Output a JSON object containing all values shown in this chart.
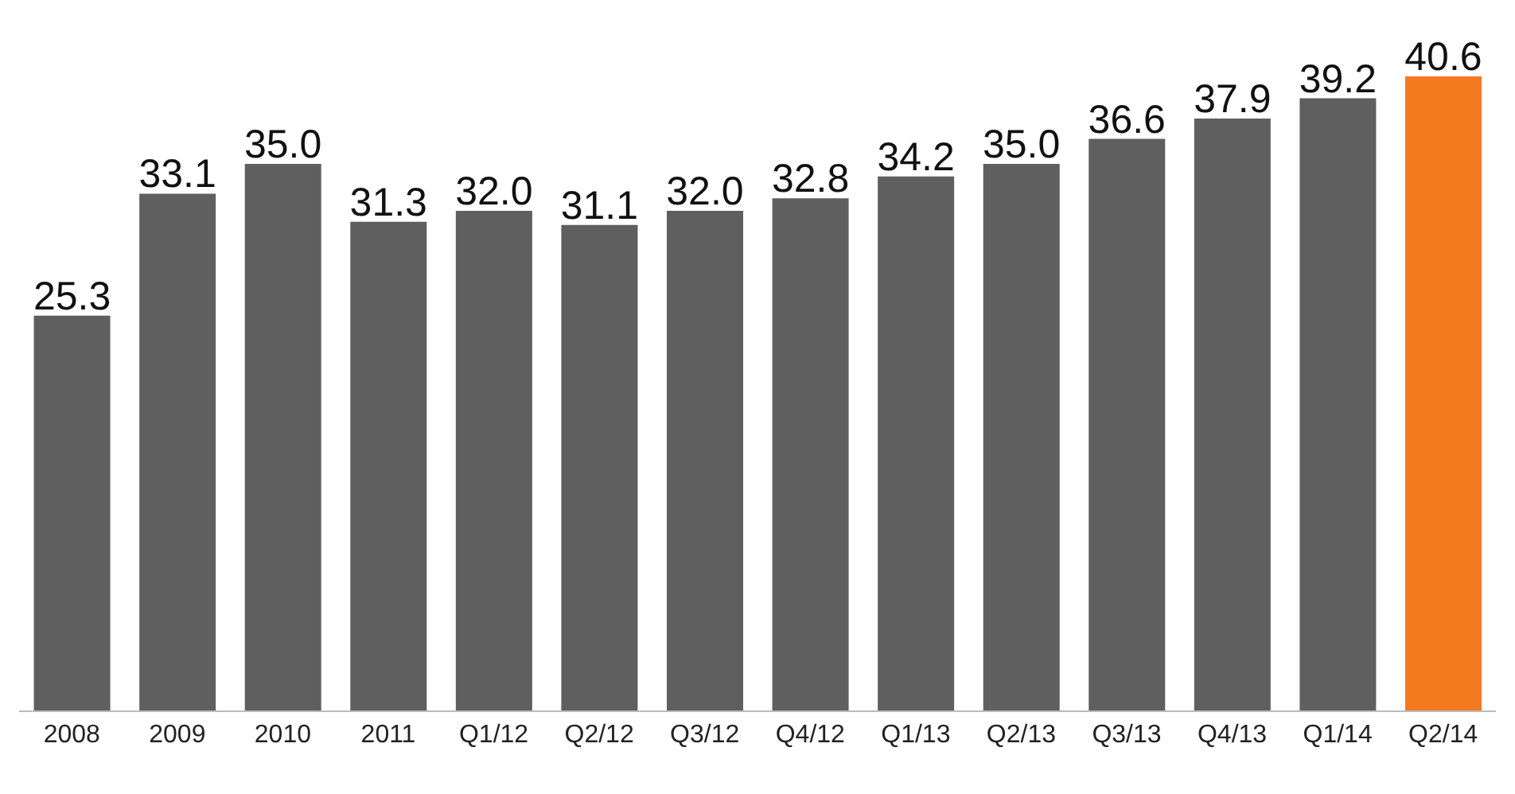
{
  "chart_data": {
    "type": "bar",
    "categories": [
      "2008",
      "2009",
      "2010",
      "2011",
      "Q1/12",
      "Q2/12",
      "Q3/12",
      "Q4/12",
      "Q1/13",
      "Q2/13",
      "Q3/13",
      "Q4/13",
      "Q1/14",
      "Q2/14"
    ],
    "values": [
      25.3,
      33.1,
      35.0,
      31.3,
      32.0,
      31.1,
      32.0,
      32.8,
      34.2,
      35.0,
      36.6,
      37.9,
      39.2,
      40.6
    ],
    "colors": [
      "#5f5f5f",
      "#5f5f5f",
      "#5f5f5f",
      "#5f5f5f",
      "#5f5f5f",
      "#5f5f5f",
      "#5f5f5f",
      "#5f5f5f",
      "#5f5f5f",
      "#5f5f5f",
      "#5f5f5f",
      "#5f5f5f",
      "#5f5f5f",
      "#f47a20"
    ],
    "value_labels": [
      "25.3",
      "33.1",
      "35.0",
      "31.3",
      "32.0",
      "31.1",
      "32.0",
      "32.8",
      "34.2",
      "35.0",
      "36.6",
      "37.9",
      "39.2",
      "40.6"
    ],
    "tick_labels": "x",
    "grid": false,
    "legend": false
  }
}
